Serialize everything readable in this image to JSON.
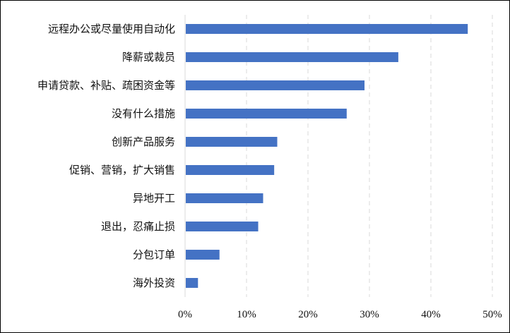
{
  "chart_data": {
    "type": "bar",
    "orientation": "horizontal",
    "categories": [
      "远程办公或尽量使用自动化",
      "降薪或裁员",
      "申请贷款、补贴、疏困资金等",
      "没有什么措施",
      "创新产品服务",
      "促销、营销，扩大销售",
      "异地开工",
      "退出，忍痛止损",
      "分包订单",
      "海外投资"
    ],
    "values": [
      46,
      34.7,
      29.2,
      26.3,
      15,
      14.5,
      12.7,
      11.9,
      5.6,
      2.1
    ],
    "xlim": [
      0,
      50
    ],
    "xticks": [
      0,
      10,
      20,
      30,
      40,
      50
    ],
    "xtick_labels": [
      "0%",
      "10%",
      "20%",
      "30%",
      "40%",
      "50%"
    ],
    "title": "",
    "xlabel": "",
    "ylabel": "",
    "grid": "vertical dashed",
    "legend": "none",
    "colors": {
      "bar": "#4472C4",
      "grid": "#D9D9D9",
      "axis": "#D9D9D9",
      "frame": "#000000",
      "text": "#111111"
    }
  }
}
